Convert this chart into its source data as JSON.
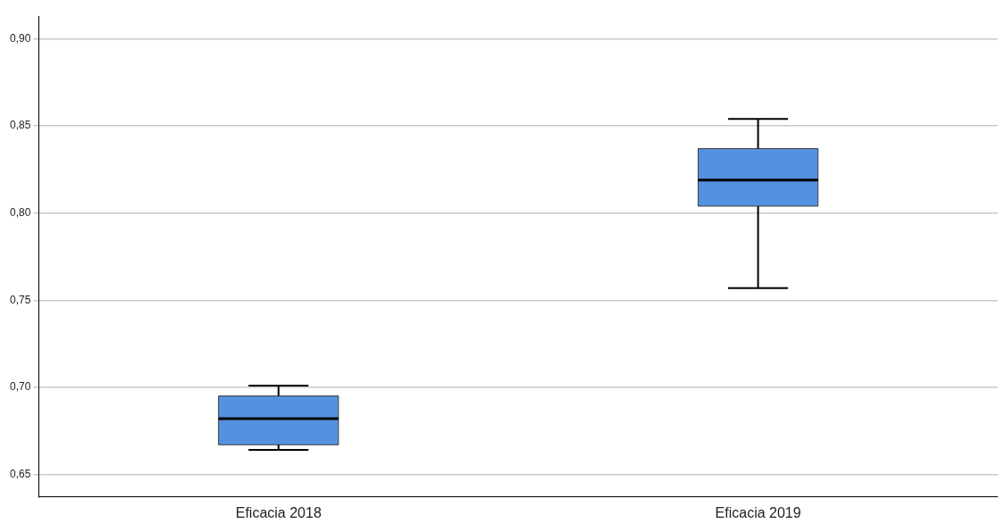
{
  "chart_data": {
    "type": "box",
    "categories": [
      "Eficacia 2018",
      "Eficacia 2019"
    ],
    "boxes": [
      {
        "low": 0.664,
        "q1": 0.667,
        "median": 0.682,
        "q3": 0.695,
        "high": 0.701
      },
      {
        "low": 0.757,
        "q1": 0.804,
        "median": 0.819,
        "q3": 0.837,
        "high": 0.854
      }
    ],
    "color": "#5591e1",
    "ylim": [
      0.637,
      0.913
    ],
    "yticks": [
      {
        "value": 0.65,
        "label": "0,65"
      },
      {
        "value": 0.7,
        "label": "0,70"
      },
      {
        "value": 0.75,
        "label": "0,75"
      },
      {
        "value": 0.8,
        "label": "0,80"
      },
      {
        "value": 0.85,
        "label": "0,85"
      },
      {
        "value": 0.9,
        "label": "0,90"
      }
    ],
    "grid": "y",
    "legend": false
  }
}
